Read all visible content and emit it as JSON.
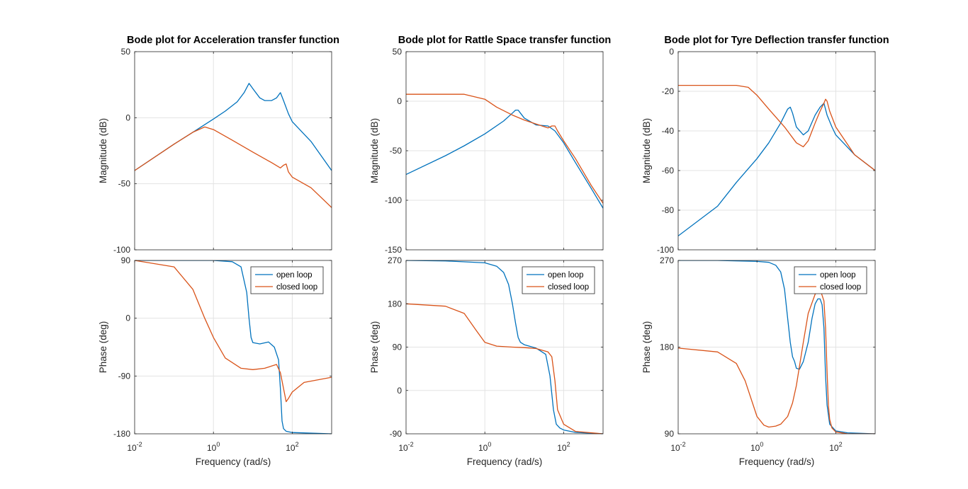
{
  "chart_data": [
    {
      "type": "line",
      "title": "Bode plot for Acceleration transfer function",
      "xlabel": "Frequency  (rad/s)",
      "xscale": "log",
      "xlim": [
        0.01,
        1000
      ],
      "xticks": [
        {
          "value": 0.01,
          "base": "10",
          "exp": "-2"
        },
        {
          "value": 1,
          "base": "10",
          "exp": "0"
        },
        {
          "value": 100,
          "base": "10",
          "exp": "2"
        }
      ],
      "colors": {
        "open": "#0072BD",
        "closed": "#D95319"
      },
      "magnitude": {
        "ylabel": "Magnitude (dB)",
        "ylim": [
          -100,
          50
        ],
        "yticks": [
          {
            "value": 50,
            "label": "50"
          },
          {
            "value": 0,
            "label": "0"
          },
          {
            "value": -50,
            "label": "-50"
          },
          {
            "value": -100,
            "label": "-100"
          }
        ],
        "series": [
          {
            "key": "open",
            "x": [
              0.01,
              0.1,
              0.3,
              1,
              2,
              4,
              6,
              8,
              10,
              15,
              20,
              30,
              40,
              50,
              60,
              80,
              100,
              300,
              1000
            ],
            "y": [
              -40,
              -20,
              -11,
              -1,
              5,
              12,
              19,
              26,
              22,
              15,
              13,
              13,
              15,
              19,
              13,
              3,
              -3,
              -18,
              -40
            ]
          },
          {
            "key": "closed",
            "x": [
              0.01,
              0.1,
              0.3,
              0.6,
              1,
              3,
              10,
              30,
              50,
              60,
              70,
              80,
              100,
              300,
              1000
            ],
            "y": [
              -40,
              -20,
              -11,
              -7,
              -9,
              -17,
              -26,
              -34,
              -38,
              -36,
              -35,
              -41,
              -45,
              -53,
              -68
            ]
          }
        ]
      },
      "phase": {
        "ylabel": "Phase (deg)",
        "ylim": [
          -180,
          90
        ],
        "yticks": [
          {
            "value": 90,
            "label": "90"
          },
          {
            "value": 0,
            "label": "0"
          },
          {
            "value": -90,
            "label": "-90"
          },
          {
            "value": -180,
            "label": "-180"
          }
        ],
        "legend": [
          "open loop",
          "closed loop"
        ],
        "series": [
          {
            "key": "open",
            "x": [
              0.01,
              1,
              3,
              5,
              7,
              8,
              9,
              10,
              15,
              25,
              35,
              45,
              50,
              55,
              60,
              70,
              100,
              1000
            ],
            "y": [
              90,
              90,
              88,
              80,
              40,
              0,
              -30,
              -38,
              -40,
              -37,
              -45,
              -65,
              -110,
              -160,
              -172,
              -176,
              -178,
              -180
            ]
          },
          {
            "key": "closed",
            "x": [
              0.01,
              0.1,
              0.3,
              0.6,
              1,
              2,
              5,
              10,
              20,
              40,
              50,
              70,
              80,
              100,
              200,
              1000
            ],
            "y": [
              90,
              80,
              45,
              0,
              -30,
              -62,
              -78,
              -80,
              -78,
              -72,
              -85,
              -130,
              -125,
              -115,
              -100,
              -92
            ]
          }
        ]
      }
    },
    {
      "type": "line",
      "title": "Bode plot for Rattle Space transfer function",
      "xlabel": "Frequency  (rad/s)",
      "xscale": "log",
      "xlim": [
        0.01,
        1000
      ],
      "xticks": [
        {
          "value": 0.01,
          "base": "10",
          "exp": "-2"
        },
        {
          "value": 1,
          "base": "10",
          "exp": "0"
        },
        {
          "value": 100,
          "base": "10",
          "exp": "2"
        }
      ],
      "colors": {
        "open": "#0072BD",
        "closed": "#D95319"
      },
      "magnitude": {
        "ylabel": "Magnitude (dB)",
        "ylim": [
          -150,
          50
        ],
        "yticks": [
          {
            "value": 50,
            "label": "50"
          },
          {
            "value": 0,
            "label": "0"
          },
          {
            "value": -50,
            "label": "-50"
          },
          {
            "value": -100,
            "label": "-100"
          },
          {
            "value": -150,
            "label": "-150"
          }
        ],
        "series": [
          {
            "key": "open",
            "x": [
              0.01,
              0.1,
              0.3,
              1,
              3,
              5,
              6,
              7,
              8,
              10,
              20,
              40,
              60,
              100,
              200,
              500,
              1000
            ],
            "y": [
              -74,
              -55,
              -45,
              -33,
              -20,
              -12,
              -9,
              -9,
              -12,
              -17,
              -24,
              -25,
              -30,
              -42,
              -62,
              -88,
              -108
            ]
          },
          {
            "key": "closed",
            "x": [
              0.01,
              0.1,
              0.3,
              1,
              2,
              5,
              10,
              20,
              40,
              50,
              60,
              70,
              100,
              200,
              500,
              1000
            ],
            "y": [
              7,
              7,
              7,
              2,
              -6,
              -14,
              -19,
              -23,
              -27,
              -25,
              -25,
              -30,
              -40,
              -58,
              -85,
              -103
            ]
          }
        ]
      },
      "phase": {
        "ylabel": "Phase (deg)",
        "ylim": [
          -90,
          270
        ],
        "yticks": [
          {
            "value": 270,
            "label": "270"
          },
          {
            "value": 180,
            "label": "180"
          },
          {
            "value": 90,
            "label": "90"
          },
          {
            "value": 0,
            "label": "0"
          },
          {
            "value": -90,
            "label": "-90"
          }
        ],
        "legend": [
          "open loop",
          "closed loop"
        ],
        "series": [
          {
            "key": "open",
            "x": [
              0.01,
              0.1,
              1,
              2,
              3,
              4,
              5,
              6,
              7,
              8,
              10,
              20,
              35,
              45,
              55,
              65,
              80,
              100,
              200,
              1000
            ],
            "y": [
              270,
              269,
              265,
              258,
              245,
              220,
              180,
              140,
              110,
              100,
              95,
              88,
              75,
              30,
              -40,
              -70,
              -78,
              -82,
              -87,
              -90
            ]
          },
          {
            "key": "closed",
            "x": [
              0.01,
              0.1,
              0.3,
              0.6,
              1,
              2,
              5,
              10,
              20,
              40,
              50,
              60,
              70,
              100,
              200,
              1000
            ],
            "y": [
              180,
              175,
              160,
              125,
              100,
              92,
              90,
              89,
              87,
              80,
              70,
              20,
              -40,
              -70,
              -85,
              -90
            ]
          }
        ]
      }
    },
    {
      "type": "line",
      "title": "Bode plot for Tyre Deflection transfer function",
      "xlabel": "Frequency  (rad/s)",
      "xscale": "log",
      "xlim": [
        0.01,
        1000
      ],
      "xticks": [
        {
          "value": 0.01,
          "base": "10",
          "exp": "-2"
        },
        {
          "value": 1,
          "base": "10",
          "exp": "0"
        },
        {
          "value": 100,
          "base": "10",
          "exp": "2"
        }
      ],
      "colors": {
        "open": "#0072BD",
        "closed": "#D95319"
      },
      "magnitude": {
        "ylabel": "Magnitude (dB)",
        "ylim": [
          -100,
          0
        ],
        "yticks": [
          {
            "value": 0,
            "label": "0"
          },
          {
            "value": -20,
            "label": "-20"
          },
          {
            "value": -40,
            "label": "-40"
          },
          {
            "value": -60,
            "label": "-60"
          },
          {
            "value": -80,
            "label": "-80"
          },
          {
            "value": -100,
            "label": "-100"
          }
        ],
        "series": [
          {
            "key": "open",
            "x": [
              0.01,
              0.1,
              0.3,
              1,
              2,
              4,
              6,
              7,
              8,
              10,
              15,
              20,
              30,
              40,
              50,
              60,
              80,
              100,
              300,
              1000
            ],
            "y": [
              -93,
              -78,
              -66,
              -54,
              -46,
              -36,
              -29,
              -28,
              -31,
              -38,
              -42,
              -40,
              -32,
              -28,
              -26,
              -32,
              -38,
              -42,
              -52,
              -60
            ]
          },
          {
            "key": "closed",
            "x": [
              0.01,
              0.1,
              0.3,
              0.6,
              1,
              2,
              5,
              10,
              15,
              20,
              30,
              40,
              50,
              55,
              60,
              70,
              100,
              300,
              1000
            ],
            "y": [
              -17,
              -17,
              -17,
              -18,
              -22,
              -29,
              -38,
              -46,
              -48,
              -45,
              -36,
              -30,
              -26,
              -24,
              -25,
              -30,
              -38,
              -52,
              -60
            ]
          }
        ]
      },
      "phase": {
        "ylabel": "Phase (deg)",
        "ylim": [
          90,
          270
        ],
        "yticks": [
          {
            "value": 270,
            "label": "270"
          },
          {
            "value": 180,
            "label": "180"
          },
          {
            "value": 90,
            "label": "90"
          }
        ],
        "legend": [
          "open loop",
          "closed loop"
        ],
        "series": [
          {
            "key": "open",
            "x": [
              0.01,
              0.1,
              1,
              2,
              3,
              4,
              5,
              6,
              7,
              8,
              9,
              10,
              12,
              15,
              20,
              25,
              30,
              35,
              40,
              45,
              50,
              55,
              60,
              70,
              100,
              200,
              1000
            ],
            "y": [
              270,
              270,
              269,
              268,
              265,
              258,
              240,
              210,
              185,
              170,
              165,
              158,
              157,
              165,
              185,
              210,
              225,
              230,
              230,
              224,
              200,
              150,
              120,
              100,
              93,
              91,
              90
            ]
          },
          {
            "key": "closed",
            "x": [
              0.01,
              0.1,
              0.3,
              0.5,
              1,
              1.5,
              2,
              3,
              4,
              6,
              8,
              10,
              15,
              20,
              30,
              40,
              50,
              55,
              60,
              65,
              70,
              80,
              100,
              200,
              1000
            ],
            "y": [
              179,
              175,
              163,
              145,
              108,
              99,
              97,
              98,
              100,
              108,
              122,
              140,
              185,
              215,
              235,
              240,
              228,
              200,
              155,
              120,
              105,
              96,
              92,
              90,
              90
            ]
          }
        ]
      }
    }
  ]
}
